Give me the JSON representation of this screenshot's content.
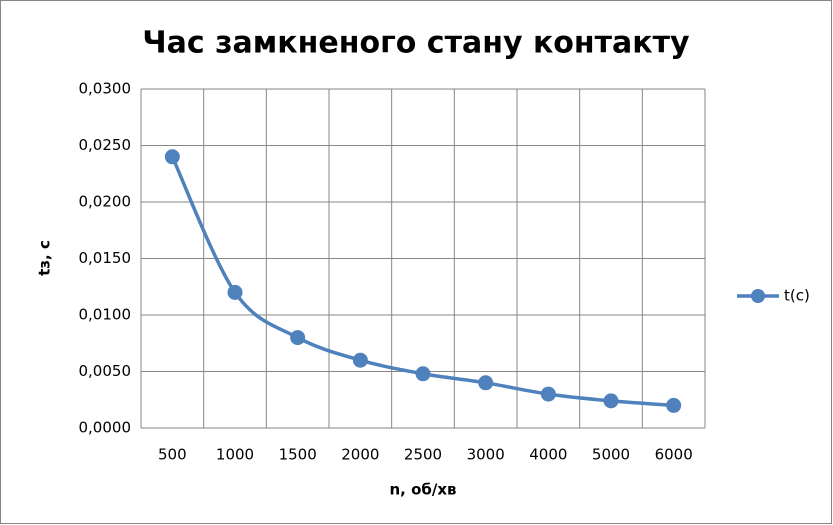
{
  "chart_data": {
    "type": "line",
    "title": "Час замкненого стану контакту",
    "x_label": "n, об/хв",
    "y_label": "tз, с",
    "categories": [
      "500",
      "1000",
      "1500",
      "2000",
      "2500",
      "3000",
      "4000",
      "5000",
      "6000"
    ],
    "series": [
      {
        "name": "t(c)",
        "color": "#4f81bd",
        "values": [
          0.024,
          0.012,
          0.008,
          0.006,
          0.0048,
          0.004,
          0.003,
          0.0024,
          0.002
        ]
      }
    ],
    "ylim": [
      0,
      0.03
    ],
    "yticks": [
      {
        "value": 0,
        "label": "0,0000"
      },
      {
        "value": 0.005,
        "label": "0,0050"
      },
      {
        "value": 0.01,
        "label": "0,0100"
      },
      {
        "value": 0.015,
        "label": "0,0150"
      },
      {
        "value": 0.02,
        "label": "0,0200"
      },
      {
        "value": 0.025,
        "label": "0,0250"
      },
      {
        "value": 0.03,
        "label": "0,0300"
      }
    ],
    "grid": true,
    "smooth": true,
    "legend": "right"
  }
}
